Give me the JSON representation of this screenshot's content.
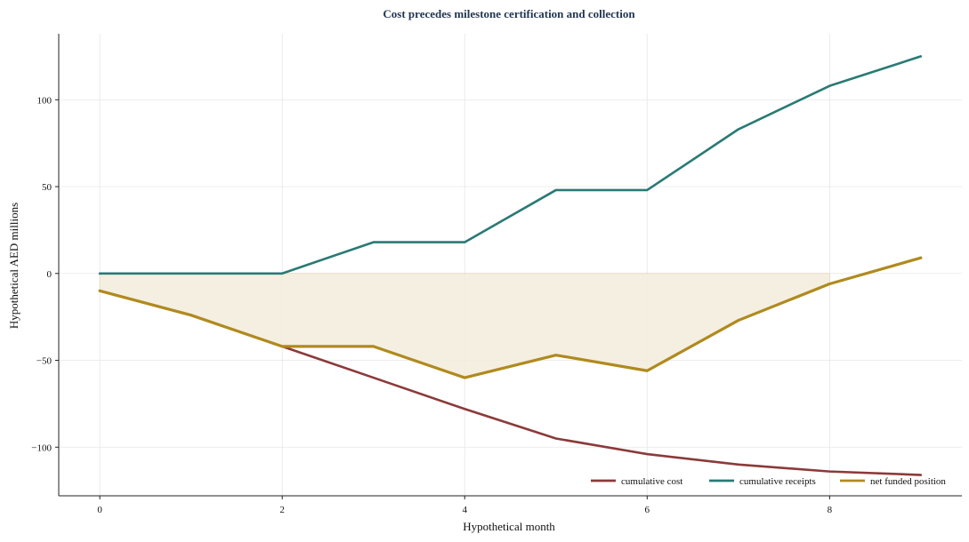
{
  "chart_data": {
    "type": "line",
    "title": "Cost precedes milestone certification and collection",
    "xlabel": "Hypothetical month",
    "ylabel": "Hypothetical AED millions",
    "xlim": [
      -0.45,
      9.45
    ],
    "ylim": [
      -128,
      138
    ],
    "xticks": [
      0,
      2,
      4,
      6,
      8
    ],
    "yticks": [
      -100,
      -50,
      0,
      50,
      100
    ],
    "x": [
      0,
      1,
      2,
      3,
      4,
      5,
      6,
      7,
      8,
      9
    ],
    "series": [
      {
        "name": "cumulative cost",
        "color": "#8b3a3a",
        "values": [
          -10,
          -24,
          -42,
          -60,
          -78,
          -95,
          -104,
          -110,
          -114,
          -116
        ]
      },
      {
        "name": "cumulative receipts",
        "color": "#2a7a74",
        "values": [
          0,
          0,
          0,
          18,
          18,
          48,
          48,
          83,
          108,
          125
        ]
      },
      {
        "name": "net funded position",
        "color": "#b08a1e",
        "values": [
          -10,
          -24,
          -42,
          -42,
          -60,
          -47,
          -56,
          -27,
          -6,
          9
        ]
      }
    ],
    "shaded_region": {
      "description_color": "#f3ecdc",
      "between": "net funded position and zero where negative"
    },
    "grid": true,
    "legend_position": "lower-right"
  }
}
